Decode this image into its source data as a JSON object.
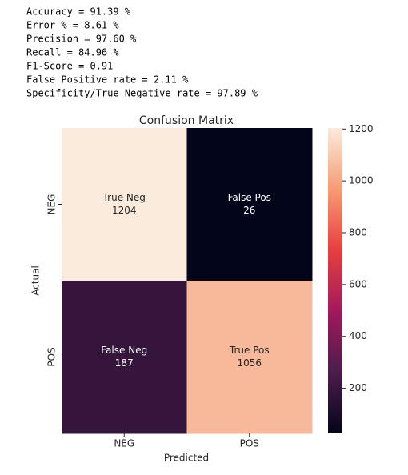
{
  "metrics": [
    "Accuracy = 91.39 %",
    "Error % = 8.61 %",
    "Precision = 97.60 %",
    "Recall = 84.96 %",
    "F1-Score = 0.91",
    "False Positive rate = 2.11 %",
    "Specificity/True Negative rate = 97.89 %"
  ],
  "chart_data": {
    "type": "heatmap",
    "title": "Confusion Matrix",
    "xlabel": "Predicted",
    "ylabel": "Actual",
    "x_categories": [
      "NEG",
      "POS"
    ],
    "y_categories": [
      "NEG",
      "POS"
    ],
    "cell_names": [
      [
        "True Neg",
        "False Pos"
      ],
      [
        "False Neg",
        "True Pos"
      ]
    ],
    "values": [
      [
        1204,
        26
      ],
      [
        187,
        1056
      ]
    ],
    "clim": [
      26,
      1204
    ],
    "cticks": [
      200,
      400,
      600,
      800,
      1000,
      1200
    ],
    "colormap": [
      "#03051a",
      "#4c1d4b",
      "#a11a5b",
      "#e83f3f",
      "#f69c73",
      "#faebdd"
    ]
  }
}
